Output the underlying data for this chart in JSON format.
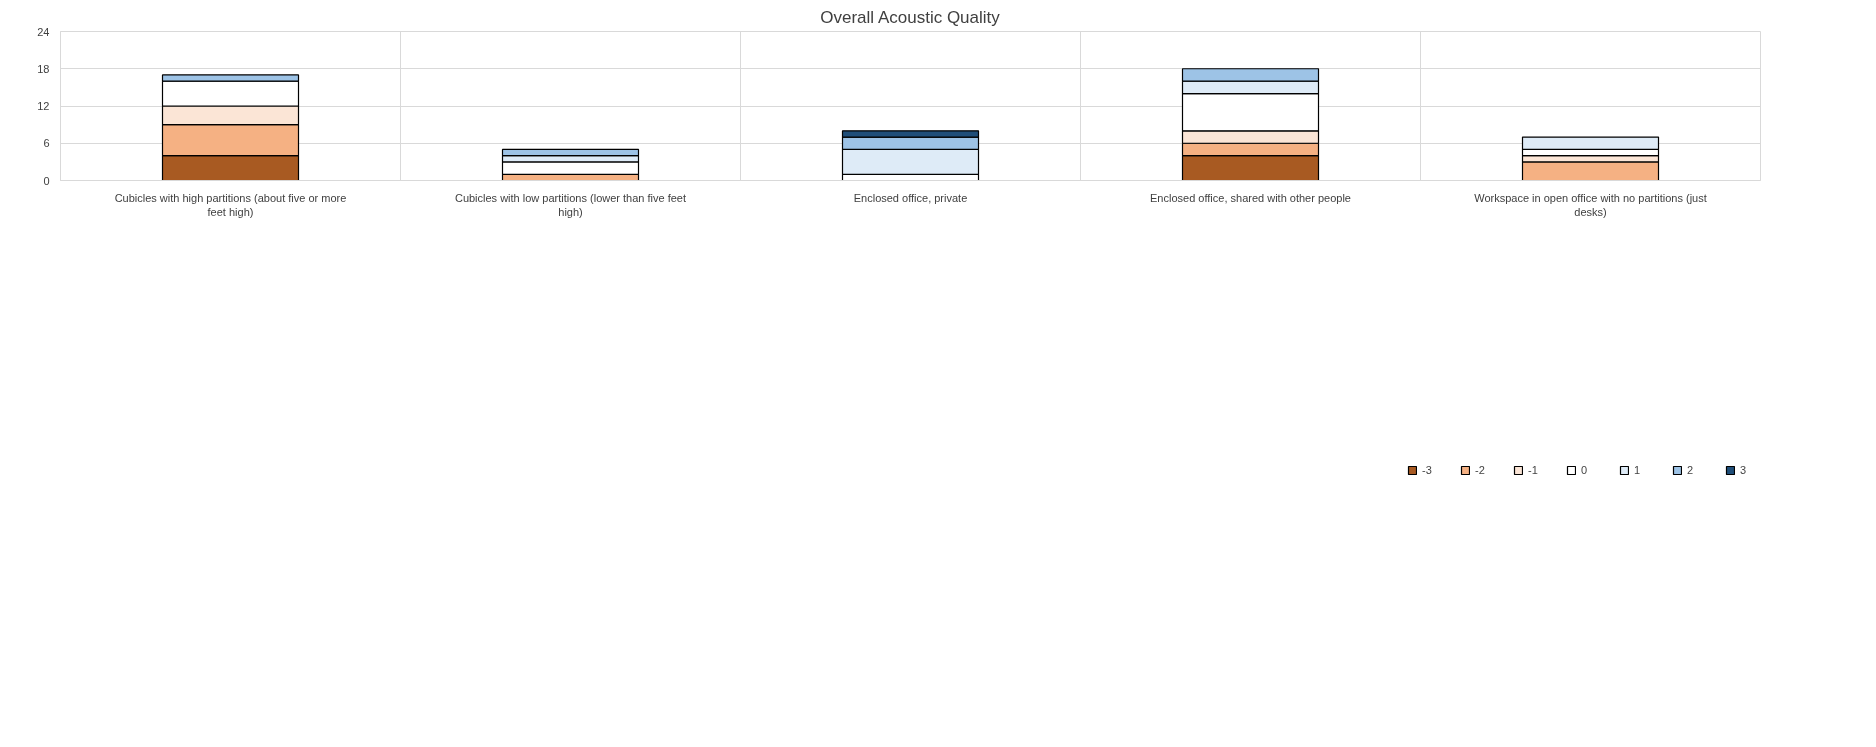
{
  "chart_data": {
    "type": "bar",
    "title": "Overall Acoustic Quality",
    "stacked": true,
    "categories": [
      "Cubicles with high partitions (about five or more feet high)",
      "Cubicles with low partitions (lower than five feet high)",
      "Enclosed office, private",
      "Enclosed office, shared with other people",
      "Workspace in open office with no partitions (just desks)"
    ],
    "series": [
      {
        "name": "-3",
        "color": "#a85a22",
        "values": [
          4,
          null,
          null,
          4,
          null
        ]
      },
      {
        "name": "-2",
        "color": "#f5b183",
        "values": [
          5,
          1,
          null,
          2,
          3
        ]
      },
      {
        "name": "-1",
        "color": "#fbe5d6",
        "values": [
          3,
          null,
          null,
          2,
          1
        ]
      },
      {
        "name": "0",
        "color": "#ffffff",
        "values": [
          4,
          2,
          1,
          6,
          1
        ]
      },
      {
        "name": "1",
        "color": "#deebf7",
        "values": [
          null,
          1,
          4,
          2,
          2
        ]
      },
      {
        "name": "2",
        "color": "#9dc3e6",
        "values": [
          1,
          1,
          2,
          2,
          null
        ]
      },
      {
        "name": "3",
        "color": "#1f4e79",
        "values": [
          null,
          null,
          1,
          null,
          null
        ]
      }
    ],
    "ylim": [
      0,
      24
    ],
    "yticks": [
      0,
      6,
      12,
      18,
      24
    ],
    "grid": true,
    "legend": "bottom right"
  }
}
